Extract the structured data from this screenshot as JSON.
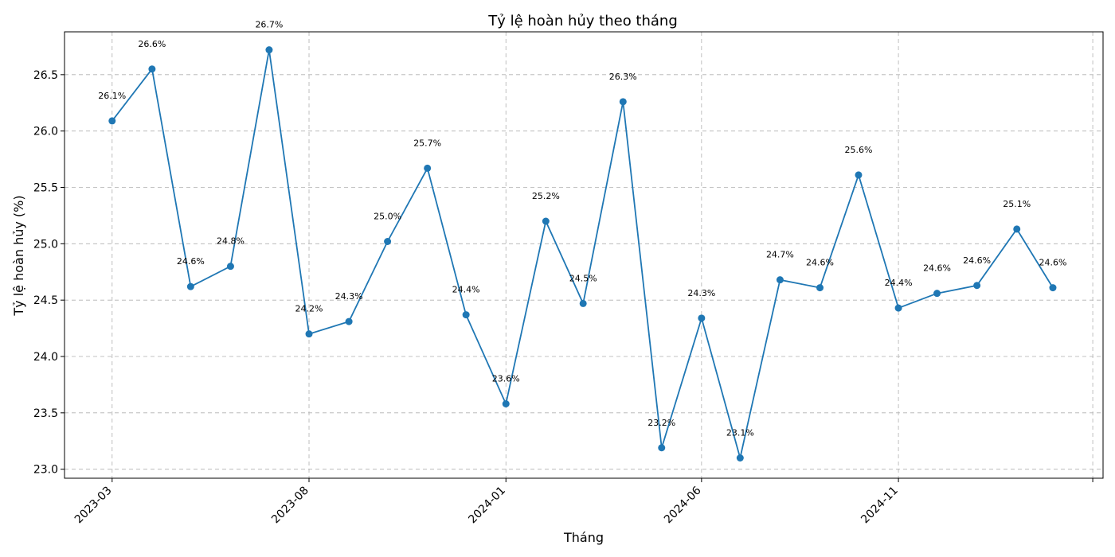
{
  "chart_data": {
    "type": "line",
    "title": "Tỷ lệ hoàn hủy theo tháng",
    "xlabel": "Tháng",
    "ylabel": "Tỷ lệ hoàn hủy (%)",
    "ylim": [
      22.92,
      26.88
    ],
    "xlim": [
      "2023-01-23",
      "2025-04-09"
    ],
    "grid": true,
    "color": "#1f77b4",
    "yticks": [
      23.0,
      23.5,
      24.0,
      24.5,
      25.0,
      25.5,
      26.0,
      26.5
    ],
    "ytick_labels": [
      "23.0",
      "23.5",
      "24.0",
      "24.5",
      "25.0",
      "25.5",
      "26.0",
      "26.5"
    ],
    "xticks": [
      "2023-03-01",
      "2023-08-01",
      "2024-01-01",
      "2024-06-01",
      "2024-11-01",
      "2025-04-01"
    ],
    "xtick_labels": [
      "2023-03",
      "2023-08",
      "2024-01",
      "2024-06",
      "2024-11",
      ""
    ],
    "x": [
      "2023-03-01",
      "2023-04-01",
      "2023-05-01",
      "2023-06-01",
      "2023-07-01",
      "2023-08-01",
      "2023-09-01",
      "2023-10-01",
      "2023-11-01",
      "2023-12-01",
      "2024-01-01",
      "2024-02-01",
      "2024-03-01",
      "2024-04-01",
      "2024-05-01",
      "2024-06-01",
      "2024-07-01",
      "2024-08-01",
      "2024-09-01",
      "2024-10-01",
      "2024-11-01",
      "2024-12-01",
      "2025-01-01",
      "2025-02-01",
      "2025-03-01"
    ],
    "values": [
      26.09,
      26.55,
      24.62,
      24.8,
      26.72,
      24.2,
      24.31,
      25.02,
      25.67,
      24.37,
      23.58,
      25.2,
      24.47,
      26.26,
      23.19,
      24.34,
      23.1,
      24.68,
      24.61,
      25.61,
      24.43,
      24.56,
      24.63,
      25.13,
      24.61
    ],
    "labels": [
      "26.1%",
      "26.6%",
      "24.6%",
      "24.8%",
      "26.7%",
      "24.2%",
      "24.3%",
      "25.0%",
      "25.7%",
      "24.4%",
      "23.6%",
      "25.2%",
      "24.5%",
      "26.3%",
      "23.2%",
      "24.3%",
      "23.1%",
      "24.7%",
      "24.6%",
      "25.6%",
      "24.4%",
      "24.6%",
      "24.6%",
      "25.1%",
      "24.6%"
    ]
  }
}
